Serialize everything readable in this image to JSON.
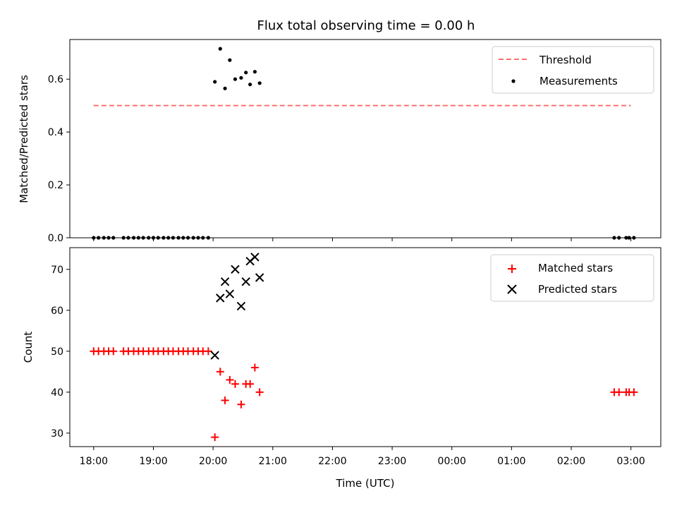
{
  "title": "Flux total observing time = 0.00 h",
  "xlabel": "Time (UTC)",
  "colors": {
    "threshold": "#ff7070",
    "measurements": "#000000",
    "matched": "#ff0000",
    "predicted": "#000000",
    "axes": "#000000",
    "background": "#ffffff"
  },
  "chart_data": [
    {
      "type": "scatter",
      "panel": "top",
      "ylabel": "Matched/Predicted stars",
      "xlim": [
        -0.4,
        9.5
      ],
      "ylim": [
        0,
        0.75
      ],
      "x_ticks": [
        0,
        1,
        2,
        3,
        4,
        5,
        6,
        7,
        8,
        9
      ],
      "x_tick_labels": [
        "18:00",
        "19:00",
        "20:00",
        "21:00",
        "22:00",
        "23:00",
        "00:00",
        "01:00",
        "02:00",
        "03:00"
      ],
      "y_ticks": [
        0.0,
        0.2,
        0.4,
        0.6
      ],
      "y_tick_labels": [
        "0.0",
        "0.2",
        "0.4",
        "0.6"
      ],
      "legend_position": "top-right",
      "legend": [
        "Threshold",
        "Measurements"
      ],
      "threshold": {
        "name": "Threshold",
        "y": 0.5,
        "x": [
          0.0,
          9.0
        ],
        "style": "dashed"
      },
      "measurements": {
        "name": "Measurements",
        "x": [
          0.0,
          0.08,
          0.17,
          0.25,
          0.33,
          0.5,
          0.58,
          0.67,
          0.75,
          0.83,
          0.92,
          1.0,
          1.08,
          1.17,
          1.25,
          1.33,
          1.42,
          1.5,
          1.58,
          1.67,
          1.75,
          1.83,
          1.92,
          2.03,
          2.12,
          2.2,
          2.28,
          2.37,
          2.47,
          2.55,
          2.62,
          2.7,
          2.78,
          8.72,
          8.8,
          8.92,
          8.97,
          9.05
        ],
        "y": [
          0,
          0,
          0,
          0,
          0,
          0,
          0,
          0,
          0,
          0,
          0,
          0,
          0,
          0,
          0,
          0,
          0,
          0,
          0,
          0,
          0,
          0,
          0,
          0.59,
          0.715,
          0.565,
          0.672,
          0.6,
          0.605,
          0.625,
          0.58,
          0.628,
          0.585,
          0,
          0,
          0,
          0,
          0
        ]
      }
    },
    {
      "type": "scatter",
      "panel": "bottom",
      "ylabel": "Count",
      "xlabel": "Time (UTC)",
      "xlim": [
        -0.4,
        9.5
      ],
      "ylim": [
        26.7,
        75.3
      ],
      "x_ticks": [
        0,
        1,
        2,
        3,
        4,
        5,
        6,
        7,
        8,
        9
      ],
      "x_tick_labels": [
        "18:00",
        "19:00",
        "20:00",
        "21:00",
        "22:00",
        "23:00",
        "00:00",
        "01:00",
        "02:00",
        "03:00"
      ],
      "y_ticks": [
        30,
        40,
        50,
        60,
        70
      ],
      "y_tick_labels": [
        "30",
        "40",
        "50",
        "60",
        "70"
      ],
      "legend_position": "top-right",
      "legend": [
        "Matched stars",
        "Predicted stars"
      ],
      "series": [
        {
          "name": "Matched stars",
          "marker": "+",
          "x": [
            0.0,
            0.08,
            0.17,
            0.25,
            0.33,
            0.5,
            0.58,
            0.67,
            0.75,
            0.83,
            0.92,
            1.0,
            1.08,
            1.17,
            1.25,
            1.33,
            1.42,
            1.5,
            1.58,
            1.67,
            1.75,
            1.83,
            1.92,
            2.03,
            2.12,
            2.2,
            2.28,
            2.37,
            2.47,
            2.55,
            2.62,
            2.7,
            2.78,
            8.72,
            8.8,
            8.92,
            8.97,
            9.05
          ],
          "y": [
            50,
            50,
            50,
            50,
            50,
            50,
            50,
            50,
            50,
            50,
            50,
            50,
            50,
            50,
            50,
            50,
            50,
            50,
            50,
            50,
            50,
            50,
            50,
            29,
            45,
            38,
            43,
            42,
            37,
            42,
            42,
            46,
            40,
            40,
            40,
            40,
            40,
            40
          ]
        },
        {
          "name": "Predicted stars",
          "marker": "x",
          "x": [
            2.03,
            2.12,
            2.2,
            2.28,
            2.37,
            2.47,
            2.55,
            2.62,
            2.7,
            2.78
          ],
          "y": [
            49,
            63,
            67,
            64,
            70,
            61,
            67,
            72,
            73,
            68
          ]
        }
      ]
    }
  ]
}
